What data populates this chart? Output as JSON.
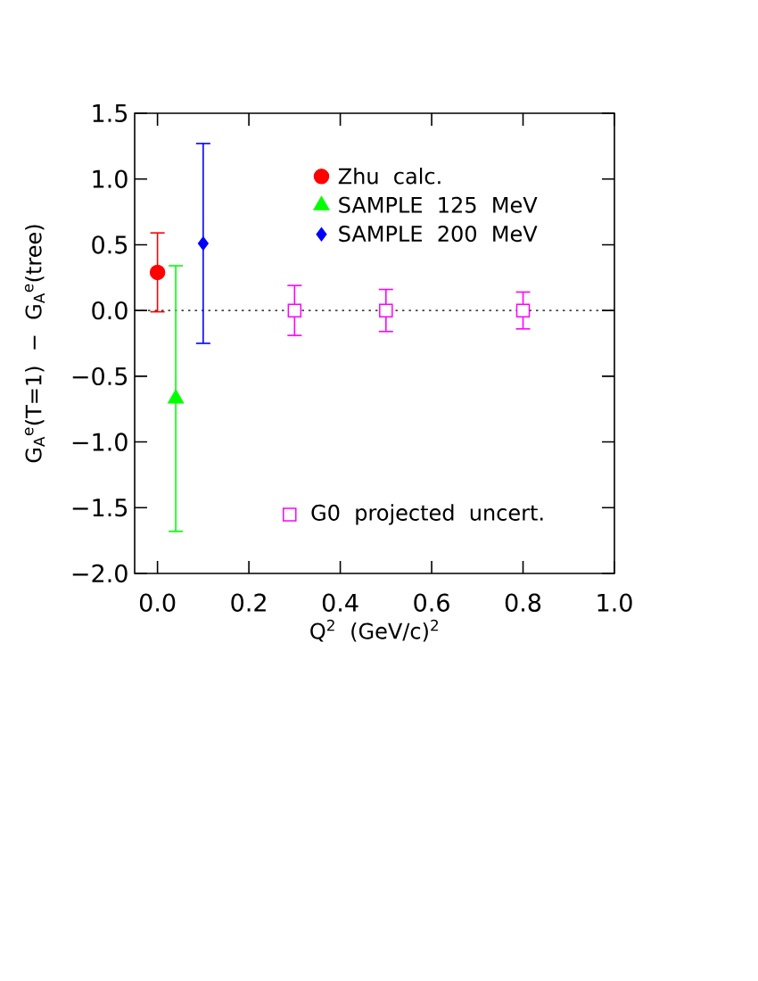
{
  "chart_data": {
    "type": "scatter",
    "xlabel": "Q$^{2}$ (GeV/c)$^{2}$",
    "ylabel": "G$_{A}$$^{e}$(T=1) − G$_{A}$$^{e}$(tree)",
    "xlim": [
      -0.05,
      1.0
    ],
    "ylim": [
      -2.0,
      1.5
    ],
    "xticks": [
      {
        "value": 0,
        "label": "0.0"
      },
      0.2,
      0.4,
      0.6,
      0.8,
      {
        "value": 1,
        "label": "1.0"
      }
    ],
    "yticks": [
      {
        "value": -2,
        "label": "−2.0"
      },
      {
        "value": -1.5,
        "label": "−1.5"
      },
      {
        "value": -1,
        "label": "−1.0"
      },
      {
        "value": -0.5,
        "label": "−0.5"
      },
      {
        "value": 0,
        "label": "0.0"
      },
      0.5,
      {
        "value": 1,
        "label": "1.0"
      },
      1.5
    ],
    "series": [
      {
        "name": "Zhu calc.",
        "color": "#ff0000",
        "marker": "circle",
        "x": [
          0.0
        ],
        "values": [
          0.29
        ],
        "errors": [
          0.3
        ]
      },
      {
        "name": "SAMPLE 125 MeV",
        "color": "#00ff00",
        "marker": "triangle",
        "x": [
          0.04
        ],
        "values": [
          -0.67
        ],
        "errors": [
          1.01
        ]
      },
      {
        "name": "SAMPLE 200 MeV",
        "color": "#0000ff",
        "marker": "diamond",
        "x": [
          0.1
        ],
        "values": [
          0.51
        ],
        "errors": [
          0.76
        ]
      },
      {
        "name": "G0 projected uncert.",
        "color": "#ff00ff",
        "marker": "square",
        "x": [
          0.3,
          0.5,
          0.8
        ],
        "values": [
          0,
          0,
          0
        ],
        "errors": [
          0.19,
          0.16,
          0.14
        ]
      }
    ],
    "ref_lines": [
      {
        "axis": "y",
        "value": 0,
        "line_style": "dotted",
        "color": "#000000"
      }
    ],
    "legend": "right"
  }
}
